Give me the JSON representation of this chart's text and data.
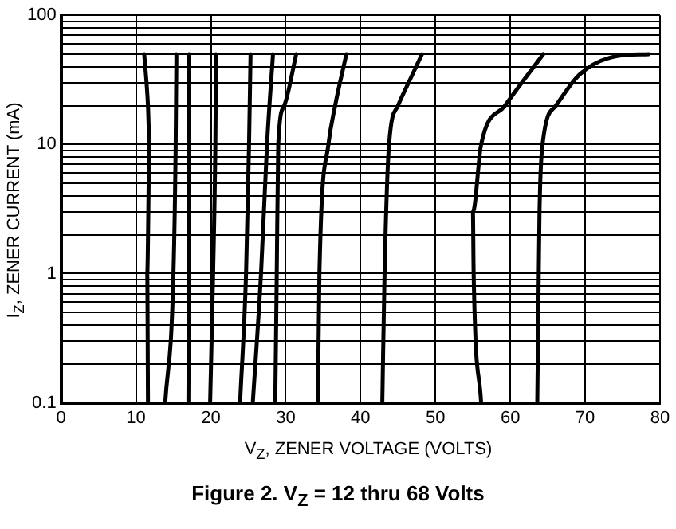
{
  "chart_data": {
    "type": "line",
    "title": "Figure 2. V$_{Z}$ = 12 thru 68 Volts",
    "xlabel": "V$_{Z}$, ZENER VOLTAGE (VOLTS)",
    "ylabel": "I$_{Z}$, ZENER CURRENT (mA)",
    "log": "y",
    "grid": true,
    "legend": false,
    "marker": "none",
    "line_style": "solid",
    "xlim": [
      0,
      80
    ],
    "xticks": [
      0,
      10,
      20,
      30,
      40,
      50,
      60,
      70,
      80
    ],
    "ylim": [
      0.1,
      100
    ],
    "yticks": [
      0.1,
      {
        "value": 0.2,
        "label": null
      },
      {
        "value": 0.3,
        "label": null
      },
      {
        "value": 0.4,
        "label": null
      },
      {
        "value": 0.5,
        "label": null
      },
      {
        "value": 0.6,
        "label": null
      },
      {
        "value": 0.7,
        "label": null
      },
      {
        "value": 0.8,
        "label": null
      },
      {
        "value": 0.9,
        "label": null
      },
      1,
      {
        "value": 2,
        "label": null
      },
      {
        "value": 3,
        "label": null
      },
      {
        "value": 4,
        "label": null
      },
      {
        "value": 5,
        "label": null
      },
      {
        "value": 6,
        "label": null
      },
      {
        "value": 7,
        "label": null
      },
      {
        "value": 8,
        "label": null
      },
      {
        "value": 9,
        "label": null
      },
      10,
      {
        "value": 20,
        "label": null
      },
      {
        "value": 30,
        "label": null
      },
      {
        "value": 40,
        "label": null
      },
      {
        "value": 50,
        "label": null
      },
      {
        "value": 60,
        "label": null
      },
      {
        "value": 70,
        "label": null
      },
      {
        "value": 80,
        "label": null
      },
      {
        "value": 90,
        "label": null
      },
      100
    ],
    "series": [
      {
        "color": "#000000",
        "x": [
          11.6,
          11.5,
          11.8,
          11.6,
          11.1
        ],
        "values": [
          0.1,
          1,
          10,
          20,
          50
        ]
      },
      {
        "color": "#000000",
        "x": [
          13.9,
          15.0,
          15.3,
          15.4
        ],
        "values": [
          0.1,
          1,
          10,
          50
        ]
      },
      {
        "color": "#000000",
        "x": [
          17.0,
          17.1,
          17.1
        ],
        "values": [
          0.1,
          1,
          50
        ]
      },
      {
        "color": "#000000",
        "x": [
          19.9,
          20.3,
          20.6,
          20.7
        ],
        "values": [
          0.1,
          1,
          10,
          50
        ]
      },
      {
        "color": "#000000",
        "x": [
          23.9,
          24.7,
          25.1,
          25.3
        ],
        "values": [
          0.1,
          1,
          10,
          50
        ]
      },
      {
        "color": "#000000",
        "x": [
          25.6,
          26.7,
          27.5,
          28.3
        ],
        "values": [
          0.1,
          1,
          10,
          50
        ]
      },
      {
        "color": "#000000",
        "x": [
          28.6,
          28.8,
          29.0,
          29.8,
          31.4
        ],
        "values": [
          0.1,
          1,
          10,
          20,
          50
        ]
      },
      {
        "color": "#000000",
        "x": [
          34.3,
          34.5,
          35.7,
          36.6,
          38.1
        ],
        "values": [
          0.1,
          1,
          10,
          20,
          50
        ]
      },
      {
        "color": "#000000",
        "x": [
          42.9,
          43.2,
          43.8,
          45.0,
          46.4,
          48.2
        ],
        "values": [
          0.1,
          1,
          10,
          20,
          30,
          50
        ]
      },
      {
        "color": "#000000",
        "x": [
          56.1,
          55.1,
          55.0,
          56.1,
          59.3,
          64.4
        ],
        "values": [
          0.1,
          1,
          3,
          10,
          20,
          50
        ]
      },
      {
        "color": "#000000",
        "x": [
          63.6,
          63.8,
          63.9,
          64.3,
          66.1,
          69.3,
          74.0,
          78.5
        ],
        "values": [
          0.1,
          1,
          3,
          10,
          20,
          35,
          48,
          50
        ]
      }
    ]
  }
}
